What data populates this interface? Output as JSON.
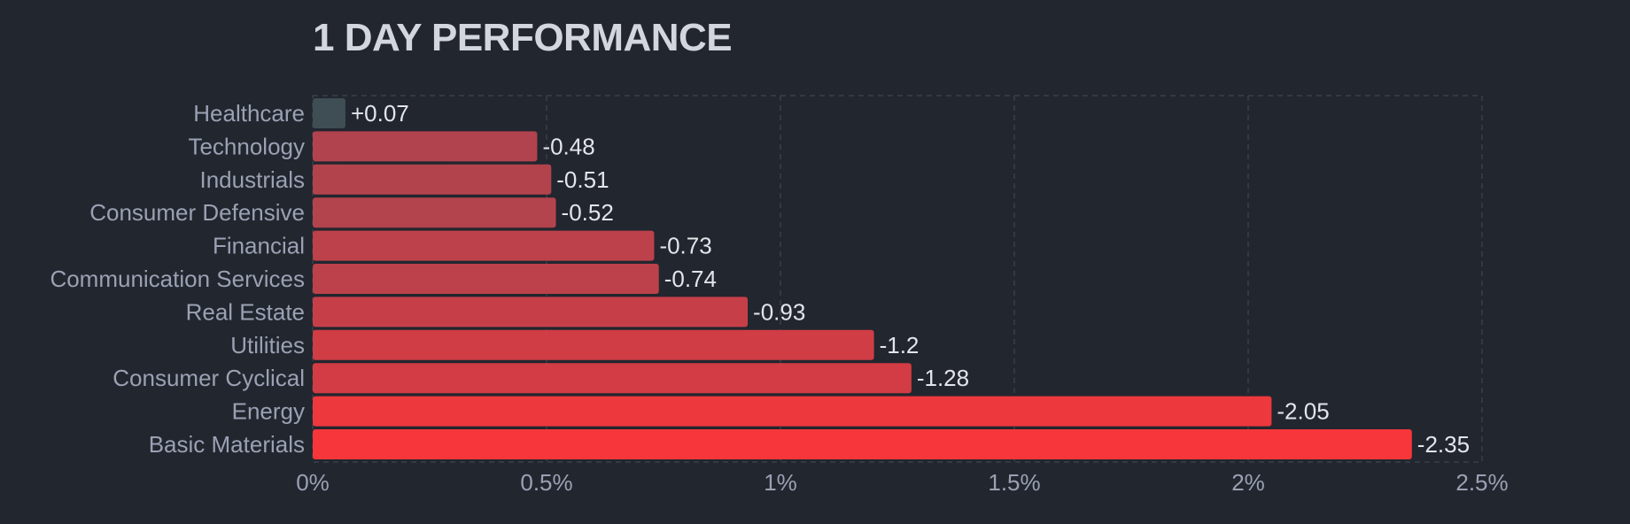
{
  "chart_data": {
    "type": "bar",
    "orientation": "horizontal",
    "title": "1 DAY PERFORMANCE",
    "categories": [
      "Healthcare",
      "Technology",
      "Industrials",
      "Consumer Defensive",
      "Financial",
      "Communication Services",
      "Real Estate",
      "Utilities",
      "Consumer Cyclical",
      "Energy",
      "Basic Materials"
    ],
    "values": [
      0.07,
      -0.48,
      -0.51,
      -0.52,
      -0.73,
      -0.74,
      -0.93,
      -1.2,
      -1.28,
      -2.05,
      -2.35
    ],
    "value_labels": [
      "+0.07",
      "-0.48",
      "-0.51",
      "-0.52",
      "-0.73",
      "-0.74",
      "-0.93",
      "-1.2",
      "-1.28",
      "-2.05",
      "-2.35"
    ],
    "x_ticks": [
      "0%",
      "0.5%",
      "1%",
      "1.5%",
      "2%",
      "2.5%"
    ],
    "x_tick_values": [
      0,
      0.5,
      1,
      1.5,
      2,
      2.5
    ],
    "xlim": [
      0,
      2.5
    ],
    "xlabel": "",
    "ylabel": "",
    "grid": true,
    "colors": {
      "background": "#22262f",
      "positive": "#3f4d55",
      "negative_light": "#854b5a",
      "negative_strong": "#f6363a",
      "grid": "#3a3f4b"
    }
  }
}
